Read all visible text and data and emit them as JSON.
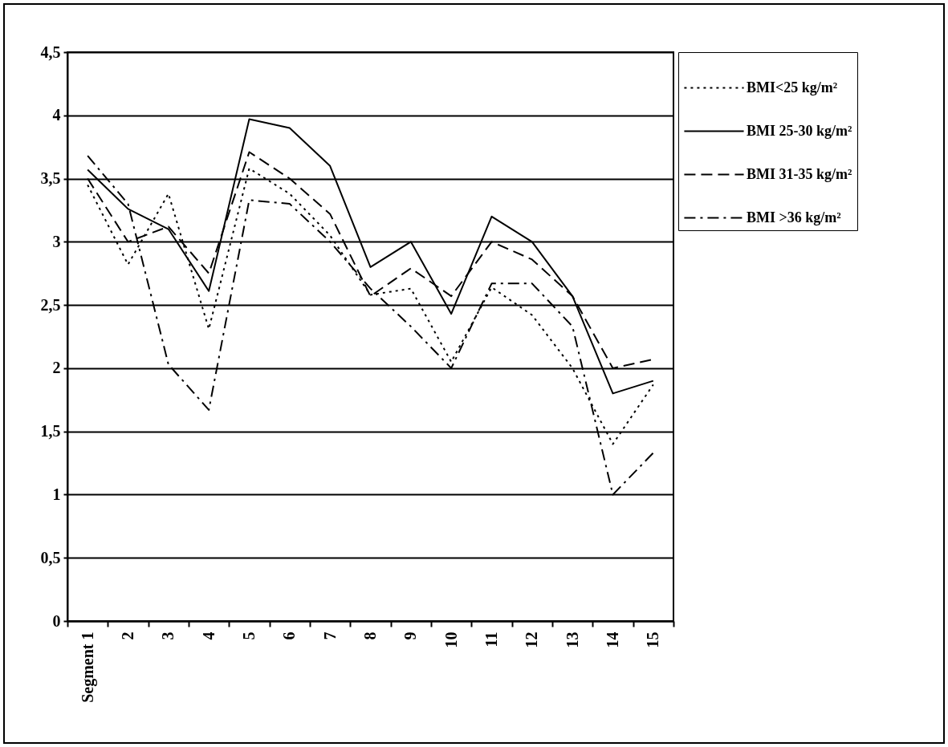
{
  "chart_data": {
    "type": "line",
    "categories": [
      "Segment 1",
      "2",
      "3",
      "4",
      "5",
      "6",
      "7",
      "8",
      "9",
      "10",
      "11",
      "12",
      "13",
      "14",
      "15"
    ],
    "series": [
      {
        "name": "BMI<25 kg/m²",
        "color": "#000000",
        "line_style": "dotted",
        "values": [
          3.45,
          2.82,
          3.38,
          2.31,
          3.58,
          3.38,
          3.05,
          2.58,
          2.63,
          2.05,
          2.64,
          2.42,
          2.0,
          1.4,
          1.87
        ]
      },
      {
        "name": "BMI 25-30 kg/m²",
        "color": "#000000",
        "line_style": "solid",
        "values": [
          3.57,
          3.26,
          3.1,
          2.61,
          3.97,
          3.9,
          3.6,
          2.8,
          3.0,
          2.43,
          3.2,
          3.0,
          2.57,
          1.8,
          1.9
        ]
      },
      {
        "name": "BMI 31-35 kg/m²",
        "color": "#000000",
        "line_style": "dashed",
        "values": [
          3.5,
          3.0,
          3.12,
          2.75,
          3.71,
          3.5,
          3.22,
          2.57,
          2.79,
          2.57,
          3.0,
          2.86,
          2.57,
          2.0,
          2.07
        ]
      },
      {
        "name": "BMI >36 kg/m²",
        "color": "#000000",
        "line_style": "dashdot",
        "values": [
          3.68,
          3.3,
          2.03,
          1.67,
          3.33,
          3.3,
          3.0,
          2.63,
          2.33,
          2.0,
          2.67,
          2.67,
          2.33,
          1.0,
          1.33
        ]
      }
    ],
    "ylim": [
      0,
      4.5
    ],
    "yticks": [
      0,
      {
        "value": 0.5,
        "label": "0,5"
      },
      1,
      {
        "value": 1.5,
        "label": "1,5"
      },
      2,
      {
        "value": 2.5,
        "label": "2,5"
      },
      3,
      {
        "value": 3.5,
        "label": "3,5"
      },
      4,
      {
        "value": 4.5,
        "label": "4,5"
      }
    ],
    "grid": "y",
    "legend": "right"
  }
}
